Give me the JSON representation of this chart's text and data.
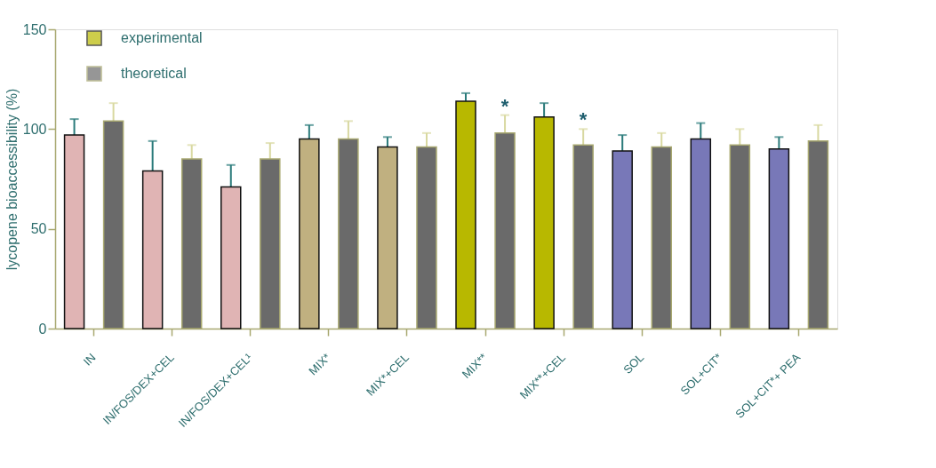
{
  "chart_data": {
    "type": "bar",
    "ylabel": "lycopene bioaccessibility (%)",
    "categories": [
      "IN",
      "IN/FOS/DEX+CEL",
      "IN/FOS/DEX+CEL¹",
      "MIX*",
      "MIX*+CEL",
      "MIX**",
      "MIX**+CEL",
      "SOL",
      "SOL+CIT*",
      "SOL+CIT*+ PEA"
    ],
    "series": [
      {
        "name": "experimental",
        "color": "#b8b800",
        "colors": [
          "#e0b4b4",
          "#e0b4b4",
          "#e0b4b4",
          "#c0b080",
          "#c0b080",
          "#b8b800",
          "#b8b800",
          "#7878b8",
          "#7878b8",
          "#7878b8"
        ],
        "values": [
          97,
          79,
          71,
          95,
          91,
          114,
          106,
          89,
          95,
          90
        ],
        "errors": [
          [
            97,
            105
          ],
          [
            79,
            94
          ],
          [
            71,
            82
          ],
          [
            95,
            102
          ],
          [
            91,
            96
          ],
          [
            114,
            118
          ],
          [
            106,
            113
          ],
          [
            89,
            97
          ],
          [
            95,
            103
          ],
          [
            90,
            96
          ]
        ]
      },
      {
        "name": "theoretical",
        "color": "#6a6a6a",
        "values": [
          104,
          85,
          85,
          95,
          91,
          98,
          92,
          91,
          92,
          94
        ],
        "value_labels": [
          null,
          null,
          null,
          null,
          null,
          "*",
          "*",
          null,
          null,
          null
        ],
        "errors": [
          [
            104,
            113
          ],
          [
            85,
            92
          ],
          [
            85,
            93
          ],
          [
            95,
            104
          ],
          [
            91,
            98
          ],
          [
            98,
            107
          ],
          [
            92,
            100
          ],
          [
            91,
            98
          ],
          [
            92,
            100
          ],
          [
            94,
            102
          ]
        ]
      }
    ],
    "ylim": [
      0,
      150
    ],
    "yticks": [
      0,
      50,
      100,
      150
    ],
    "grid": false,
    "legend": "top left"
  }
}
